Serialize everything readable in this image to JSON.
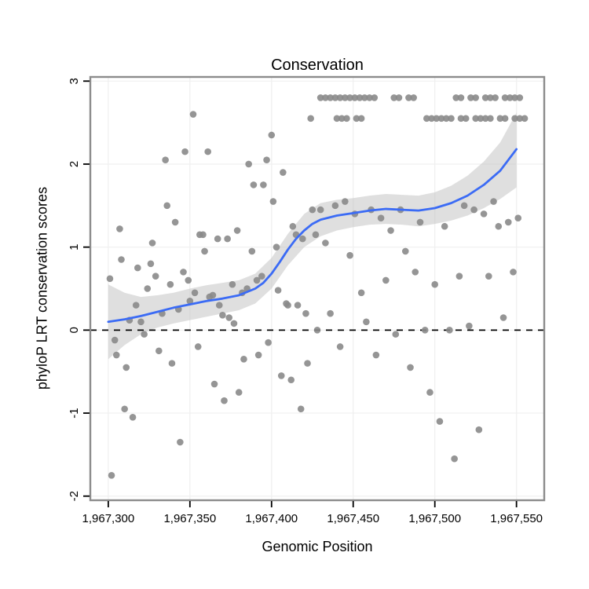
{
  "chart_data": {
    "type": "scatter",
    "title": "Conservation",
    "xlabel": "Genomic Position",
    "ylabel": "phyloP LRT conservation scores",
    "xlim": [
      1967289,
      1967567
    ],
    "ylim": [
      -2.05,
      3.05
    ],
    "x_ticks": [
      1967300,
      1967350,
      1967400,
      1967450,
      1967500,
      1967550
    ],
    "x_tick_labels": [
      "1,967,300",
      "1,967,350",
      "1,967,400",
      "1,967,450",
      "1,967,500",
      "1,967,550"
    ],
    "y_ticks": [
      -2,
      -1,
      0,
      1,
      2,
      3
    ],
    "y_tick_labels": [
      "-2",
      "-1",
      "0",
      "1",
      "2",
      "3"
    ],
    "grid": true,
    "legend": false,
    "hline": {
      "y": 0,
      "style": "dashed",
      "color": "#000000"
    },
    "colors": {
      "point": "#8a8a8a",
      "line": "#3b6bf5",
      "band": "#c0c0c0",
      "border": "#8c8c8c",
      "grid": "#f0f0f0",
      "text": "#000000",
      "background": "#ffffff"
    },
    "points": [
      [
        1967301,
        0.62
      ],
      [
        1967302,
        -1.75
      ],
      [
        1967304,
        -0.12
      ],
      [
        1967305,
        -0.3
      ],
      [
        1967307,
        1.22
      ],
      [
        1967308,
        0.85
      ],
      [
        1967310,
        -0.95
      ],
      [
        1967311,
        -0.45
      ],
      [
        1967313,
        0.12
      ],
      [
        1967315,
        -1.05
      ],
      [
        1967317,
        0.3
      ],
      [
        1967318,
        0.75
      ],
      [
        1967320,
        0.1
      ],
      [
        1967322,
        -0.05
      ],
      [
        1967324,
        0.5
      ],
      [
        1967326,
        0.8
      ],
      [
        1967327,
        1.05
      ],
      [
        1967329,
        0.65
      ],
      [
        1967331,
        -0.25
      ],
      [
        1967333,
        0.2
      ],
      [
        1967335,
        2.05
      ],
      [
        1967336,
        1.5
      ],
      [
        1967338,
        0.55
      ],
      [
        1967339,
        -0.4
      ],
      [
        1967341,
        1.3
      ],
      [
        1967343,
        0.25
      ],
      [
        1967344,
        -1.35
      ],
      [
        1967346,
        0.7
      ],
      [
        1967347,
        2.15
      ],
      [
        1967349,
        0.6
      ],
      [
        1967350,
        0.35
      ],
      [
        1967352,
        2.6
      ],
      [
        1967353,
        0.45
      ],
      [
        1967355,
        -0.2
      ],
      [
        1967356,
        1.15
      ],
      [
        1967358,
        1.15
      ],
      [
        1967359,
        0.95
      ],
      [
        1967361,
        2.15
      ],
      [
        1967362,
        0.4
      ],
      [
        1967364,
        0.42
      ],
      [
        1967365,
        -0.65
      ],
      [
        1967367,
        1.1
      ],
      [
        1967368,
        0.3
      ],
      [
        1967370,
        0.18
      ],
      [
        1967371,
        -0.85
      ],
      [
        1967373,
        1.1
      ],
      [
        1967374,
        0.15
      ],
      [
        1967376,
        0.55
      ],
      [
        1967377,
        0.08
      ],
      [
        1967379,
        1.2
      ],
      [
        1967380,
        -0.75
      ],
      [
        1967382,
        0.45
      ],
      [
        1967383,
        -0.35
      ],
      [
        1967385,
        0.5
      ],
      [
        1967386,
        2.0
      ],
      [
        1967388,
        0.95
      ],
      [
        1967389,
        1.75
      ],
      [
        1967391,
        0.6
      ],
      [
        1967392,
        -0.3
      ],
      [
        1967394,
        0.65
      ],
      [
        1967395,
        1.75
      ],
      [
        1967397,
        2.05
      ],
      [
        1967398,
        -0.15
      ],
      [
        1967400,
        2.35
      ],
      [
        1967401,
        1.55
      ],
      [
        1967403,
        1.0
      ],
      [
        1967404,
        0.48
      ],
      [
        1967406,
        -0.55
      ],
      [
        1967407,
        1.9
      ],
      [
        1967409,
        0.32
      ],
      [
        1967410,
        0.3
      ],
      [
        1967412,
        -0.6
      ],
      [
        1967413,
        1.25
      ],
      [
        1967415,
        1.15
      ],
      [
        1967416,
        0.3
      ],
      [
        1967418,
        -0.95
      ],
      [
        1967419,
        1.1
      ],
      [
        1967421,
        0.2
      ],
      [
        1967422,
        -0.4
      ],
      [
        1967424,
        2.55
      ],
      [
        1967425,
        1.45
      ],
      [
        1967427,
        1.15
      ],
      [
        1967428,
        0.0
      ],
      [
        1967430,
        1.45
      ],
      [
        1967433,
        1.05
      ],
      [
        1967436,
        0.2
      ],
      [
        1967439,
        1.5
      ],
      [
        1967442,
        -0.2
      ],
      [
        1967445,
        1.55
      ],
      [
        1967448,
        0.9
      ],
      [
        1967451,
        1.4
      ],
      [
        1967455,
        0.45
      ],
      [
        1967458,
        0.1
      ],
      [
        1967461,
        1.45
      ],
      [
        1967464,
        -0.3
      ],
      [
        1967467,
        1.35
      ],
      [
        1967470,
        0.6
      ],
      [
        1967473,
        1.2
      ],
      [
        1967476,
        -0.05
      ],
      [
        1967479,
        1.45
      ],
      [
        1967482,
        0.95
      ],
      [
        1967485,
        -0.45
      ],
      [
        1967488,
        0.7
      ],
      [
        1967491,
        1.3
      ],
      [
        1967494,
        0.0
      ],
      [
        1967497,
        -0.75
      ],
      [
        1967500,
        0.55
      ],
      [
        1967503,
        -1.1
      ],
      [
        1967506,
        1.25
      ],
      [
        1967509,
        0.0
      ],
      [
        1967512,
        -1.55
      ],
      [
        1967515,
        0.65
      ],
      [
        1967518,
        1.5
      ],
      [
        1967521,
        0.05
      ],
      [
        1967524,
        1.45
      ],
      [
        1967527,
        -1.2
      ],
      [
        1967530,
        1.4
      ],
      [
        1967533,
        0.65
      ],
      [
        1967536,
        1.55
      ],
      [
        1967539,
        1.25
      ],
      [
        1967542,
        0.15
      ],
      [
        1967545,
        1.3
      ],
      [
        1967548,
        0.7
      ],
      [
        1967551,
        1.35
      ],
      [
        1967430,
        2.8
      ],
      [
        1967433,
        2.8
      ],
      [
        1967436,
        2.8
      ],
      [
        1967439,
        2.8
      ],
      [
        1967442,
        2.8
      ],
      [
        1967445,
        2.8
      ],
      [
        1967448,
        2.8
      ],
      [
        1967451,
        2.8
      ],
      [
        1967454,
        2.8
      ],
      [
        1967457,
        2.8
      ],
      [
        1967460,
        2.8
      ],
      [
        1967463,
        2.8
      ],
      [
        1967475,
        2.8
      ],
      [
        1967478,
        2.8
      ],
      [
        1967484,
        2.8
      ],
      [
        1967487,
        2.8
      ],
      [
        1967513,
        2.8
      ],
      [
        1967516,
        2.8
      ],
      [
        1967522,
        2.8
      ],
      [
        1967525,
        2.8
      ],
      [
        1967531,
        2.8
      ],
      [
        1967534,
        2.8
      ],
      [
        1967537,
        2.8
      ],
      [
        1967543,
        2.8
      ],
      [
        1967546,
        2.8
      ],
      [
        1967549,
        2.8
      ],
      [
        1967552,
        2.8
      ],
      [
        1967440,
        2.55
      ],
      [
        1967443,
        2.55
      ],
      [
        1967446,
        2.55
      ],
      [
        1967452,
        2.55
      ],
      [
        1967455,
        2.55
      ],
      [
        1967495,
        2.55
      ],
      [
        1967498,
        2.55
      ],
      [
        1967501,
        2.55
      ],
      [
        1967504,
        2.55
      ],
      [
        1967507,
        2.55
      ],
      [
        1967510,
        2.55
      ],
      [
        1967516,
        2.55
      ],
      [
        1967519,
        2.55
      ],
      [
        1967525,
        2.55
      ],
      [
        1967528,
        2.55
      ],
      [
        1967531,
        2.55
      ],
      [
        1967534,
        2.55
      ],
      [
        1967540,
        2.55
      ],
      [
        1967543,
        2.55
      ],
      [
        1967549,
        2.55
      ],
      [
        1967552,
        2.55
      ],
      [
        1967555,
        2.55
      ]
    ],
    "smooth_line": [
      [
        1967300,
        0.1
      ],
      [
        1967310,
        0.13
      ],
      [
        1967320,
        0.17
      ],
      [
        1967330,
        0.22
      ],
      [
        1967340,
        0.27
      ],
      [
        1967350,
        0.31
      ],
      [
        1967360,
        0.35
      ],
      [
        1967370,
        0.38
      ],
      [
        1967380,
        0.42
      ],
      [
        1967390,
        0.5
      ],
      [
        1967395,
        0.57
      ],
      [
        1967400,
        0.68
      ],
      [
        1967405,
        0.82
      ],
      [
        1967410,
        0.97
      ],
      [
        1967415,
        1.1
      ],
      [
        1967420,
        1.2
      ],
      [
        1967425,
        1.28
      ],
      [
        1967430,
        1.33
      ],
      [
        1967440,
        1.38
      ],
      [
        1967450,
        1.41
      ],
      [
        1967460,
        1.44
      ],
      [
        1967470,
        1.46
      ],
      [
        1967480,
        1.45
      ],
      [
        1967490,
        1.44
      ],
      [
        1967500,
        1.47
      ],
      [
        1967510,
        1.53
      ],
      [
        1967520,
        1.62
      ],
      [
        1967530,
        1.75
      ],
      [
        1967540,
        1.92
      ],
      [
        1967550,
        2.18
      ]
    ],
    "confidence_band": [
      [
        1967300,
        -0.35,
        0.55
      ],
      [
        1967310,
        -0.18,
        0.45
      ],
      [
        1967320,
        -0.05,
        0.4
      ],
      [
        1967330,
        0.03,
        0.42
      ],
      [
        1967340,
        0.08,
        0.45
      ],
      [
        1967350,
        0.12,
        0.5
      ],
      [
        1967360,
        0.16,
        0.54
      ],
      [
        1967370,
        0.2,
        0.57
      ],
      [
        1967380,
        0.24,
        0.6
      ],
      [
        1967390,
        0.32,
        0.68
      ],
      [
        1967400,
        0.5,
        0.87
      ],
      [
        1967410,
        0.78,
        1.16
      ],
      [
        1967420,
        1.0,
        1.4
      ],
      [
        1967430,
        1.13,
        1.53
      ],
      [
        1967440,
        1.2,
        1.57
      ],
      [
        1967450,
        1.24,
        1.59
      ],
      [
        1967460,
        1.27,
        1.62
      ],
      [
        1967470,
        1.28,
        1.64
      ],
      [
        1967480,
        1.27,
        1.63
      ],
      [
        1967490,
        1.25,
        1.62
      ],
      [
        1967500,
        1.28,
        1.66
      ],
      [
        1967510,
        1.32,
        1.74
      ],
      [
        1967520,
        1.38,
        1.86
      ],
      [
        1967530,
        1.47,
        2.03
      ],
      [
        1967540,
        1.58,
        2.26
      ],
      [
        1967550,
        1.72,
        2.62
      ]
    ]
  }
}
